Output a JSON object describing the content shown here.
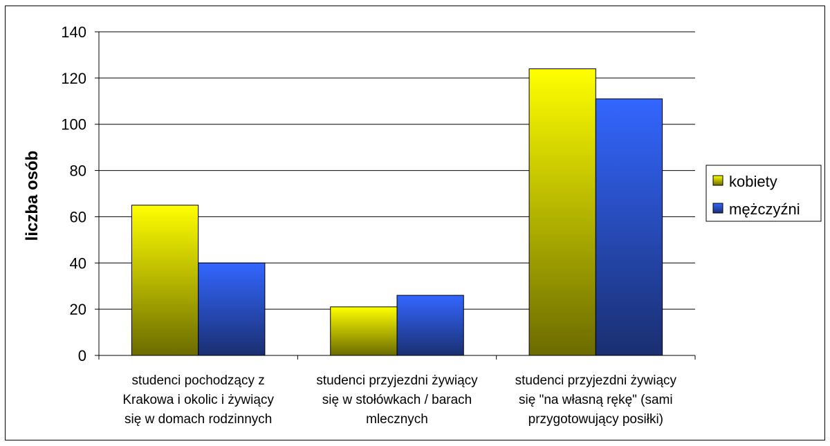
{
  "chart_data": {
    "type": "bar",
    "title": "",
    "xlabel": "",
    "ylabel": "liczba osób",
    "ylim": [
      0,
      140
    ],
    "yticks": [
      0,
      20,
      40,
      60,
      80,
      100,
      120,
      140
    ],
    "grid": true,
    "legend_position": "right",
    "categories": [
      [
        "studenci pochodzący z",
        "Krakowa i okolic i żywiący",
        "się w domach rodzinnych"
      ],
      [
        "studenci przyjezdni żywiący",
        "się w stołówkach / barach",
        "mlecznych"
      ],
      [
        "studenci przyjezdni żywiący",
        "się \"na własną rękę\" (sami",
        "przygotowujący posiłki)"
      ]
    ],
    "series": [
      {
        "name": "kobiety",
        "values": [
          65,
          21,
          124
        ],
        "color_top": "#ffff00",
        "color_bottom": "#6b6b00"
      },
      {
        "name": "mężczyźni",
        "values": [
          40,
          26,
          111
        ],
        "color_top": "#3366ff",
        "color_bottom": "#1a2f70"
      }
    ]
  }
}
